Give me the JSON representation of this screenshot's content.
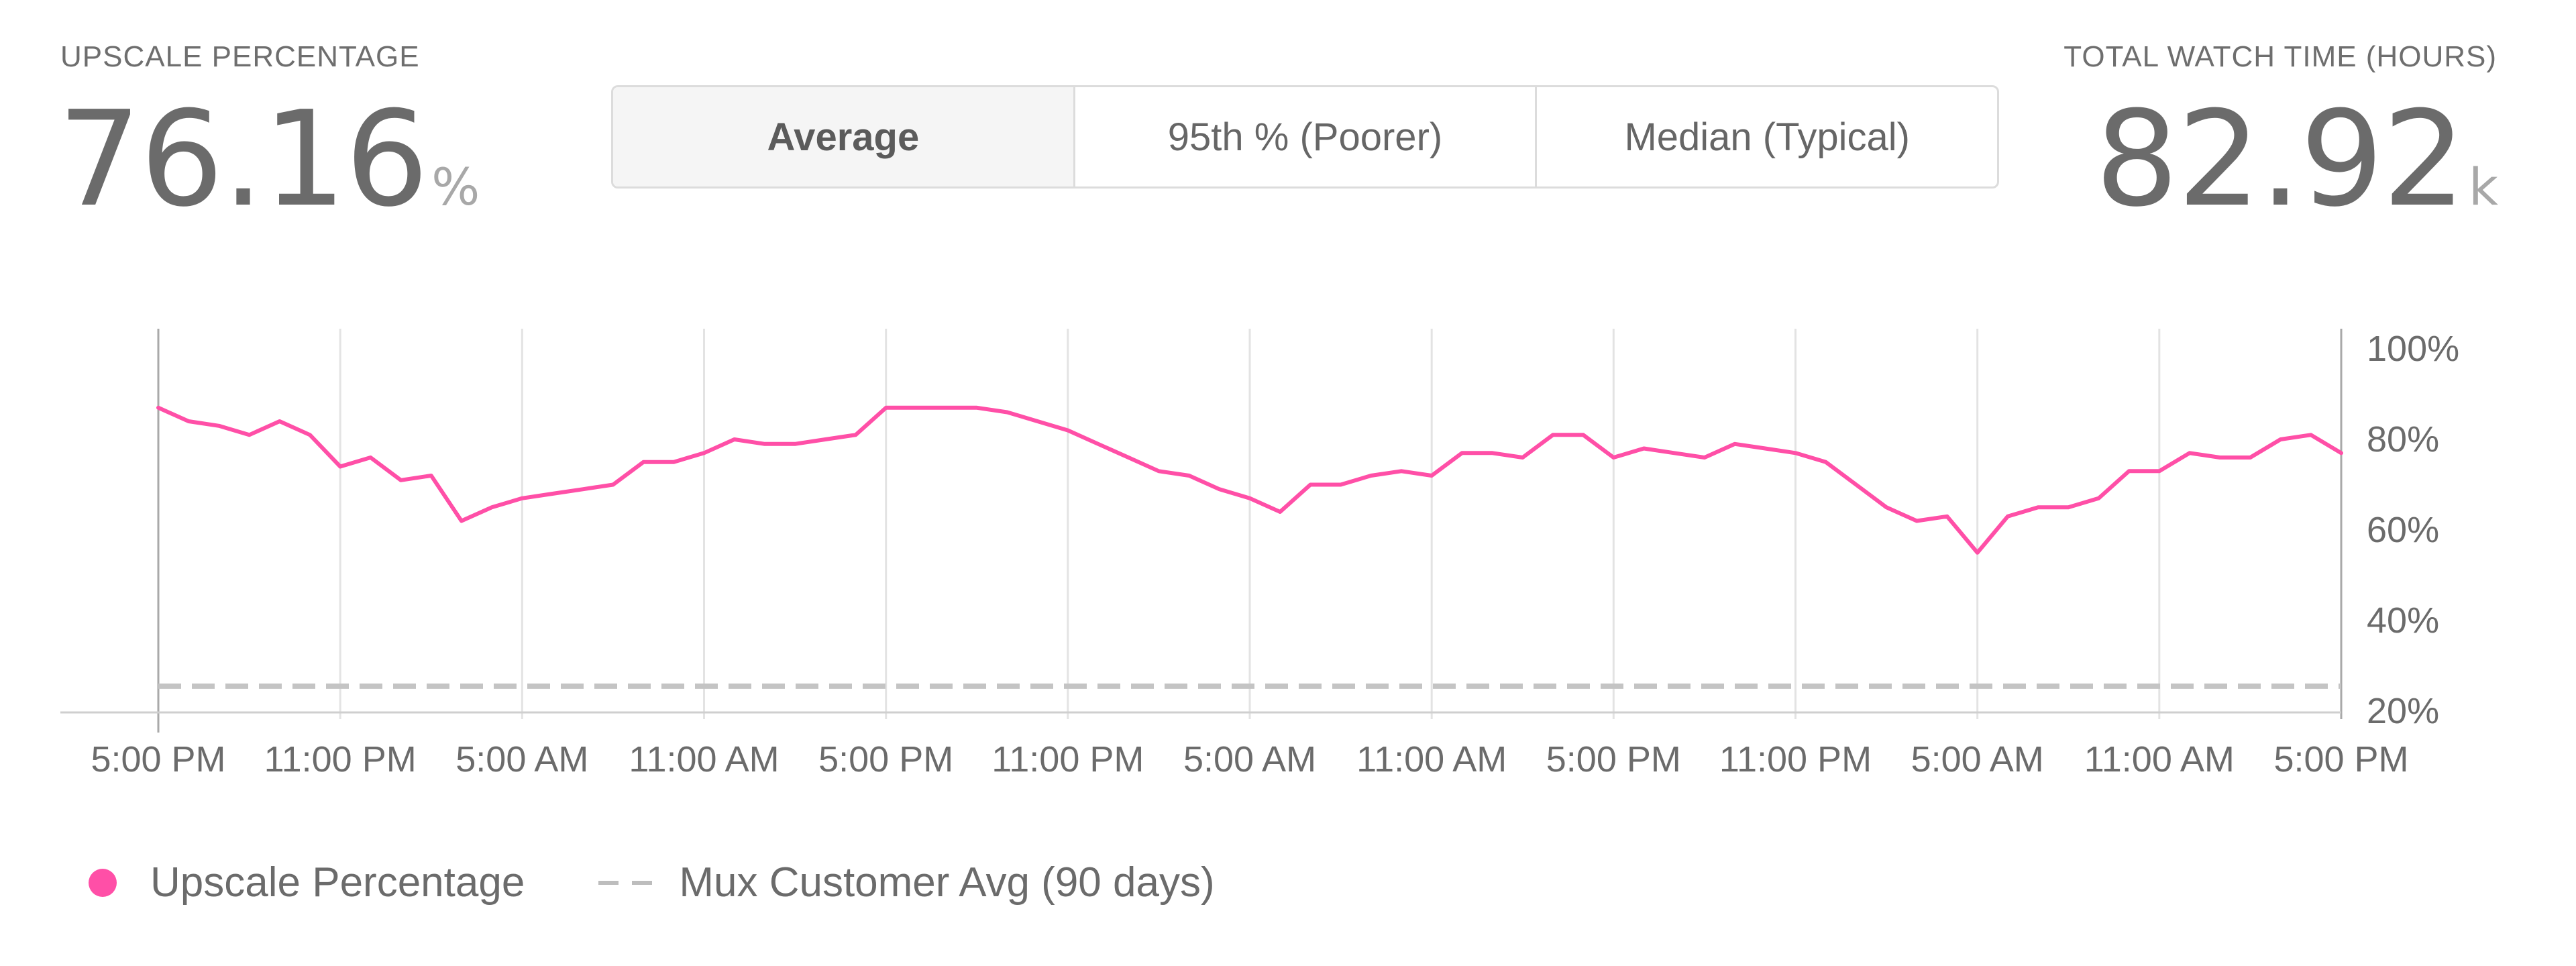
{
  "header": {
    "left": {
      "label": "UPSCALE PERCENTAGE",
      "value": "76.16",
      "unit": "%"
    },
    "right": {
      "label": "TOTAL WATCH TIME (HOURS)",
      "value": "82.92",
      "unit": "k"
    }
  },
  "segmented_control": {
    "options": [
      "Average",
      "95th % (Poorer)",
      "Median (Typical)"
    ],
    "selected": "Average"
  },
  "colors": {
    "series": "#ff4fa7",
    "baseline": "#c4c4c4",
    "grid": "#e3e3e3"
  },
  "legend": {
    "series_label": "Upscale Percentage",
    "baseline_label": "Mux Customer Avg (90 days)"
  },
  "chart_data": {
    "type": "line",
    "title": "",
    "xlabel": "",
    "ylabel": "",
    "x_tick_labels": [
      "5:00 PM",
      "11:00 PM",
      "5:00 AM",
      "11:00 AM",
      "5:00 PM",
      "11:00 PM",
      "5:00 AM",
      "11:00 AM",
      "5:00 PM",
      "11:00 PM",
      "5:00 AM",
      "11:00 AM",
      "5:00 PM"
    ],
    "x_hours_range": [
      0,
      72
    ],
    "y_tick_labels": [
      "100%",
      "80%",
      "60%",
      "40%",
      "20%"
    ],
    "y_ticks": [
      100,
      80,
      60,
      40,
      20
    ],
    "ylim": [
      20,
      100
    ],
    "y_axis_position": "right",
    "grid": "vertical",
    "legend_position": "bottom-left",
    "series": [
      {
        "name": "Upscale Percentage",
        "x_hours": [
          0,
          1,
          2,
          3,
          4,
          5,
          6,
          7,
          8,
          9,
          10,
          11,
          12,
          13,
          14,
          15,
          16,
          17,
          18,
          19,
          20,
          21,
          22,
          23,
          24,
          25,
          26,
          27,
          28,
          29,
          30,
          31,
          32,
          33,
          34,
          35,
          36,
          37,
          38,
          39,
          40,
          41,
          42,
          43,
          44,
          45,
          46,
          47,
          48,
          49,
          50,
          51,
          52,
          53,
          54,
          55,
          56,
          57,
          58,
          59,
          60,
          61,
          62,
          63,
          64,
          65,
          66,
          67,
          68,
          69,
          70,
          71,
          72
        ],
        "values": [
          87,
          84,
          83,
          81,
          84,
          81,
          74,
          76,
          71,
          72,
          62,
          65,
          67,
          68,
          69,
          70,
          75,
          75,
          77,
          80,
          79,
          79,
          80,
          81,
          87,
          87,
          87,
          87,
          86,
          84,
          82,
          79,
          76,
          73,
          72,
          69,
          67,
          64,
          70,
          70,
          72,
          73,
          72,
          77,
          77,
          76,
          81,
          81,
          76,
          78,
          77,
          76,
          79,
          78,
          77,
          75,
          70,
          65,
          62,
          63,
          55,
          63,
          65,
          65,
          67,
          73,
          73,
          77,
          76,
          76,
          80,
          81,
          77
        ]
      },
      {
        "name": "Mux Customer Avg (90 days)",
        "style": "dashed",
        "x_hours": [
          0,
          72
        ],
        "values": [
          25.5,
          25.5
        ]
      }
    ]
  }
}
